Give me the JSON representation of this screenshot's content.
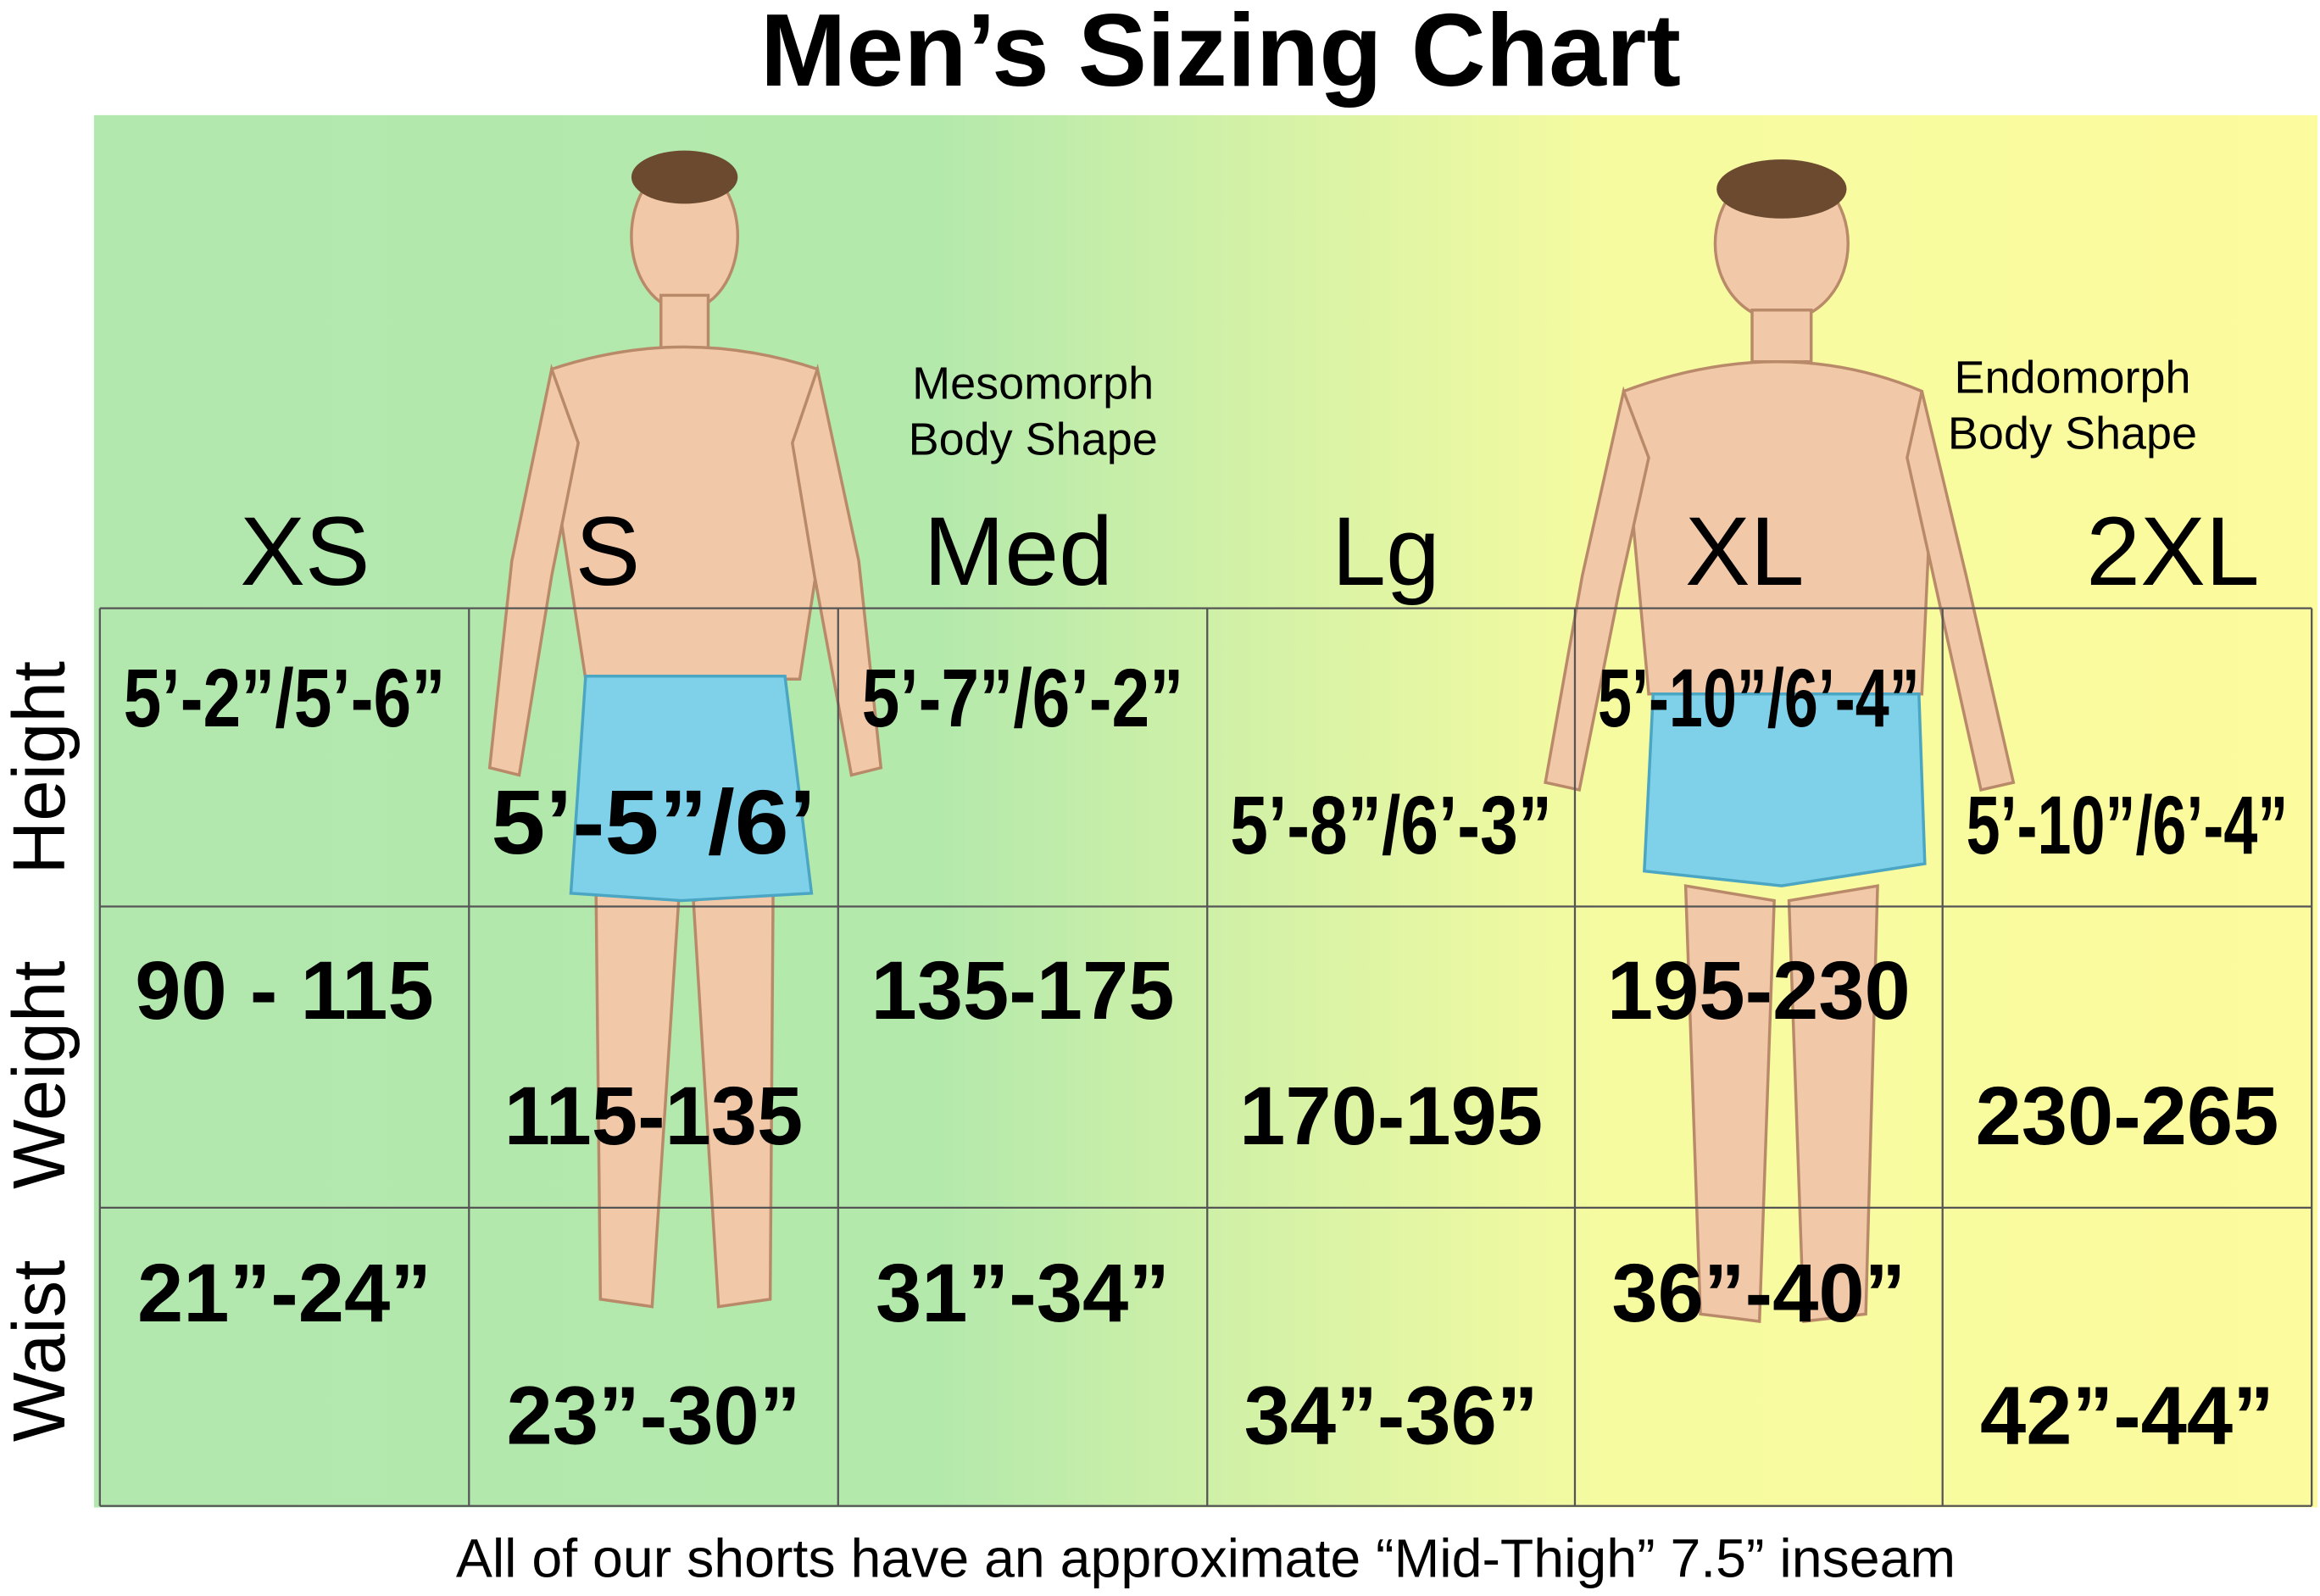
{
  "title": "Men’s Sizing Chart",
  "body_shapes": [
    "Mesomorph\nBody Shape",
    "Endomorph\nBody Shape"
  ],
  "sizes": [
    "XS",
    "S",
    "Med",
    "Lg",
    "XL",
    "2XL"
  ],
  "rows": [
    {
      "label": "Height",
      "cells": [
        "5’-2”/5’-6”",
        "5’-5”/6’",
        "5’-7”/6’-2”",
        "5’-8”/6’-3”",
        "5’-10”/6’-4”",
        "5’-10”/6’-4”"
      ]
    },
    {
      "label": "Weight",
      "cells": [
        "90 - 115",
        "115-135",
        "135-175",
        "170-195",
        "195-230",
        "230-265"
      ]
    },
    {
      "label": "Waist",
      "cells": [
        "21”-24”",
        "23”-30”",
        "31”-34”",
        "34”-36”",
        "36”-40”",
        "42”-44”"
      ]
    }
  ],
  "footer": "All of our shorts have an approximate “Mid-Thigh” 7.5” inseam"
}
